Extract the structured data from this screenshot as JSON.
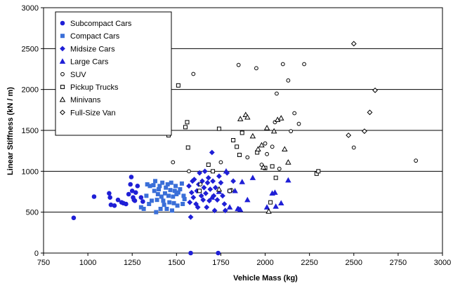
{
  "chart_data": {
    "type": "scatter",
    "xlabel": "Vehicle Mass (kg)",
    "ylabel": "Linear Stiffness (kN / m)",
    "xlim": [
      750,
      3000
    ],
    "ylim": [
      0,
      3000
    ],
    "xticks": [
      "750",
      "1000",
      "1250",
      "1500",
      "1750",
      "2000",
      "2250",
      "2500",
      "2750",
      "3000"
    ],
    "yticks": [
      "0",
      "500",
      "1000",
      "1500",
      "2000",
      "2500",
      "3000"
    ],
    "grid": "horizontal",
    "legend_position": "top-left",
    "series": [
      {
        "name": "Subcompact Cars",
        "marker": "circle-filled",
        "color": "#1f1fd6",
        "points": [
          [
            920,
            430
          ],
          [
            1035,
            690
          ],
          [
            1120,
            730
          ],
          [
            1125,
            680
          ],
          [
            1130,
            590
          ],
          [
            1150,
            580
          ],
          [
            1170,
            650
          ],
          [
            1190,
            620
          ],
          [
            1200,
            610
          ],
          [
            1215,
            600
          ],
          [
            1230,
            720
          ],
          [
            1240,
            840
          ],
          [
            1245,
            930
          ],
          [
            1250,
            760
          ],
          [
            1255,
            680
          ],
          [
            1260,
            650
          ],
          [
            1265,
            640
          ],
          [
            1270,
            740
          ],
          [
            1280,
            820
          ],
          [
            1300,
            680
          ],
          [
            1310,
            630
          ],
          [
            1580,
            0
          ],
          [
            1735,
            0
          ]
        ]
      },
      {
        "name": "Compact Cars",
        "marker": "square-filled",
        "color": "#3a6fd8",
        "points": [
          [
            1300,
            560
          ],
          [
            1315,
            540
          ],
          [
            1330,
            700
          ],
          [
            1335,
            840
          ],
          [
            1345,
            600
          ],
          [
            1350,
            820
          ],
          [
            1360,
            640
          ],
          [
            1370,
            830
          ],
          [
            1375,
            760
          ],
          [
            1380,
            880
          ],
          [
            1385,
            500
          ],
          [
            1390,
            650
          ],
          [
            1395,
            720
          ],
          [
            1400,
            780
          ],
          [
            1405,
            820
          ],
          [
            1410,
            540
          ],
          [
            1415,
            690
          ],
          [
            1420,
            860
          ],
          [
            1425,
            640
          ],
          [
            1430,
            590
          ],
          [
            1435,
            730
          ],
          [
            1440,
            800
          ],
          [
            1445,
            540
          ],
          [
            1450,
            840
          ],
          [
            1455,
            700
          ],
          [
            1460,
            620
          ],
          [
            1465,
            770
          ],
          [
            1470,
            860
          ],
          [
            1475,
            520
          ],
          [
            1480,
            690
          ],
          [
            1485,
            610
          ],
          [
            1490,
            760
          ],
          [
            1495,
            820
          ],
          [
            1500,
            720
          ],
          [
            1505,
            580
          ],
          [
            1510,
            740
          ],
          [
            1520,
            780
          ],
          [
            1530,
            850
          ],
          [
            1535,
            600
          ],
          [
            1540,
            700
          ],
          [
            1545,
            660
          ]
        ]
      },
      {
        "name": "Midsize Cars",
        "marker": "diamond-filled",
        "color": "#1f1fd6",
        "points": [
          [
            1570,
            820
          ],
          [
            1575,
            620
          ],
          [
            1580,
            440
          ],
          [
            1585,
            740
          ],
          [
            1590,
            880
          ],
          [
            1595,
            680
          ],
          [
            1600,
            900
          ],
          [
            1610,
            600
          ],
          [
            1615,
            760
          ],
          [
            1620,
            560
          ],
          [
            1625,
            840
          ],
          [
            1630,
            980
          ],
          [
            1640,
            700
          ],
          [
            1645,
            880
          ],
          [
            1650,
            650
          ],
          [
            1655,
            800
          ],
          [
            1660,
            1000
          ],
          [
            1665,
            730
          ],
          [
            1670,
            560
          ],
          [
            1675,
            860
          ],
          [
            1680,
            920
          ],
          [
            1685,
            640
          ],
          [
            1690,
            780
          ],
          [
            1700,
            1230
          ],
          [
            1705,
            880
          ],
          [
            1710,
            700
          ],
          [
            1715,
            520
          ],
          [
            1720,
            800
          ],
          [
            1730,
            650
          ],
          [
            1740,
            940
          ],
          [
            1750,
            860
          ],
          [
            1760,
            700
          ],
          [
            1770,
            600
          ],
          [
            1775,
            520
          ],
          [
            1785,
            980
          ],
          [
            1800,
            760
          ],
          [
            1820,
            880
          ],
          [
            1850,
            540
          ]
        ]
      },
      {
        "name": "Large Cars",
        "marker": "triangle-filled",
        "color": "#1f1fd6",
        "points": [
          [
            1700,
            680
          ],
          [
            1740,
            750
          ],
          [
            1780,
            1000
          ],
          [
            1800,
            560
          ],
          [
            1830,
            760
          ],
          [
            1845,
            540
          ],
          [
            1860,
            530
          ],
          [
            1870,
            870
          ],
          [
            1900,
            650
          ],
          [
            1930,
            920
          ],
          [
            2010,
            560
          ],
          [
            2040,
            730
          ],
          [
            2055,
            740
          ],
          [
            2060,
            570
          ],
          [
            2090,
            610
          ],
          [
            2130,
            890
          ]
        ]
      },
      {
        "name": "SUV",
        "marker": "circle-open",
        "color": "#000000",
        "points": [
          [
            1480,
            1110
          ],
          [
            1570,
            1000
          ],
          [
            1595,
            2190
          ],
          [
            1635,
            840
          ],
          [
            1750,
            1110
          ],
          [
            1810,
            770
          ],
          [
            1850,
            2300
          ],
          [
            1870,
            1480
          ],
          [
            1900,
            1170
          ],
          [
            1950,
            2260
          ],
          [
            1980,
            1080
          ],
          [
            2000,
            1340
          ],
          [
            2010,
            1210
          ],
          [
            2040,
            1300
          ],
          [
            2055,
            1600
          ],
          [
            2065,
            1950
          ],
          [
            2080,
            1030
          ],
          [
            2100,
            2310
          ],
          [
            2130,
            2110
          ],
          [
            2145,
            1490
          ],
          [
            2165,
            1710
          ],
          [
            2190,
            1580
          ],
          [
            2220,
            2310
          ],
          [
            2500,
            1290
          ],
          [
            2850,
            1130
          ]
        ]
      },
      {
        "name": "Pickup Trucks",
        "marker": "square-open",
        "color": "#000000",
        "points": [
          [
            1455,
            1440
          ],
          [
            1510,
            2050
          ],
          [
            1550,
            1540
          ],
          [
            1560,
            1600
          ],
          [
            1565,
            1290
          ],
          [
            1630,
            760
          ],
          [
            1680,
            1080
          ],
          [
            1705,
            1000
          ],
          [
            1740,
            1520
          ],
          [
            1800,
            760
          ],
          [
            1820,
            1380
          ],
          [
            1840,
            1300
          ],
          [
            1855,
            1200
          ],
          [
            1870,
            1470
          ],
          [
            1955,
            1230
          ],
          [
            2000,
            1040
          ],
          [
            2040,
            1060
          ],
          [
            2030,
            620
          ],
          [
            2060,
            920
          ],
          [
            2290,
            970
          ],
          [
            2300,
            1000
          ]
        ]
      },
      {
        "name": "Minivans",
        "marker": "triangle-open",
        "color": "#000000",
        "points": [
          [
            1740,
            780
          ],
          [
            1860,
            1640
          ],
          [
            1890,
            1690
          ],
          [
            1900,
            1660
          ],
          [
            1930,
            1430
          ],
          [
            1960,
            1270
          ],
          [
            1980,
            1320
          ],
          [
            1990,
            1050
          ],
          [
            2010,
            1530
          ],
          [
            2020,
            510
          ],
          [
            2050,
            1490
          ],
          [
            2070,
            1630
          ],
          [
            2090,
            1650
          ],
          [
            2110,
            1270
          ],
          [
            2130,
            1110
          ]
        ]
      },
      {
        "name": "Full-Size Van",
        "marker": "diamond-open",
        "color": "#000000",
        "points": [
          [
            2470,
            1440
          ],
          [
            2500,
            2560
          ],
          [
            2560,
            1490
          ],
          [
            2590,
            1720
          ],
          [
            2620,
            1990
          ]
        ]
      }
    ]
  }
}
